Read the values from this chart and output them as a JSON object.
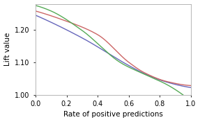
{
  "title": "",
  "xlabel": "Rate of positive predictions",
  "ylabel": "Lift value",
  "xlim": [
    0.0,
    1.0
  ],
  "ylim": [
    1.0,
    1.28
  ],
  "yticks": [
    1.0,
    1.1,
    1.2
  ],
  "xticks": [
    0.0,
    0.2,
    0.4,
    0.6,
    0.8,
    1.0
  ],
  "bg_color": "#ffffff",
  "line_colors": [
    "#6666bb",
    "#cc6666",
    "#55aa55"
  ],
  "line_width": 1.0
}
